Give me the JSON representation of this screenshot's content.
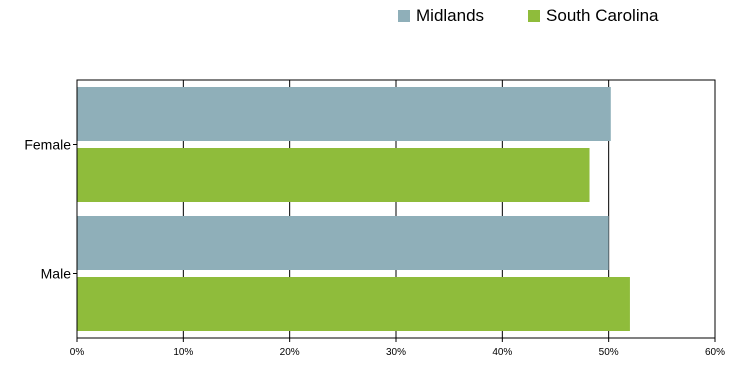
{
  "chart_data": {
    "type": "bar",
    "orientation": "horizontal",
    "title": "",
    "xlabel": "",
    "ylabel": "",
    "categories": [
      "Female",
      "Male"
    ],
    "series": [
      {
        "name": "Midlands",
        "values": [
          50.2,
          50.0
        ],
        "color": "#8fafb9"
      },
      {
        "name": "South Carolina",
        "values": [
          48.2,
          52.0
        ],
        "color": "#8fbc3b"
      }
    ],
    "xlim": [
      0,
      60
    ],
    "x_ticks": [
      0,
      10,
      20,
      30,
      40,
      50,
      60
    ],
    "x_tick_labels": [
      "0%",
      "10%",
      "20%",
      "30%",
      "40%",
      "50%",
      "60%"
    ],
    "grid": "vertical",
    "legend_position": "top-right"
  }
}
